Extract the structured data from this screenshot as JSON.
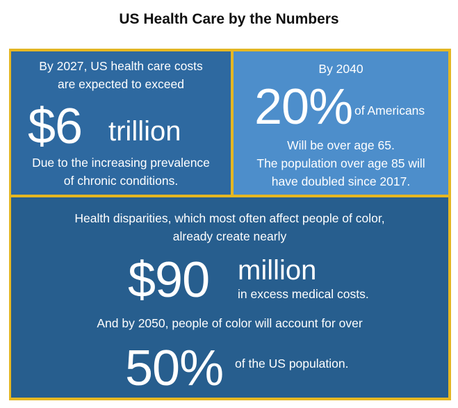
{
  "title": "US Health Care by the Numbers",
  "colors": {
    "border": "#e5b722",
    "panel_top_left": "#2e69a0",
    "panel_top_right": "#4d8ecb",
    "panel_bottom": "#275e8e",
    "text": "#ffffff"
  },
  "panel_costs": {
    "intro_line1": "By 2027, US health care costs",
    "intro_line2": "are expected to exceed",
    "big_number": "$6",
    "big_unit": "trillion",
    "note_line1": "Due to the increasing prevalence",
    "note_line2": "of chronic conditions."
  },
  "panel_aging": {
    "intro": "By 2040",
    "big_number": "20%",
    "big_suffix": "of Americans",
    "line1": "Will be over age 65.",
    "line2": "The population over age 85 will",
    "line3": "have doubled since 2017."
  },
  "panel_disparities": {
    "intro_line1": "Health disparities, which most often affect people of color,",
    "intro_line2": "already create nearly",
    "big_number": "$90",
    "big_unit": "million",
    "unit_note": "in excess medical costs.",
    "followup": "And by 2050, people of color will account for over",
    "big_percent": "50%",
    "percent_note": "of the US population."
  }
}
